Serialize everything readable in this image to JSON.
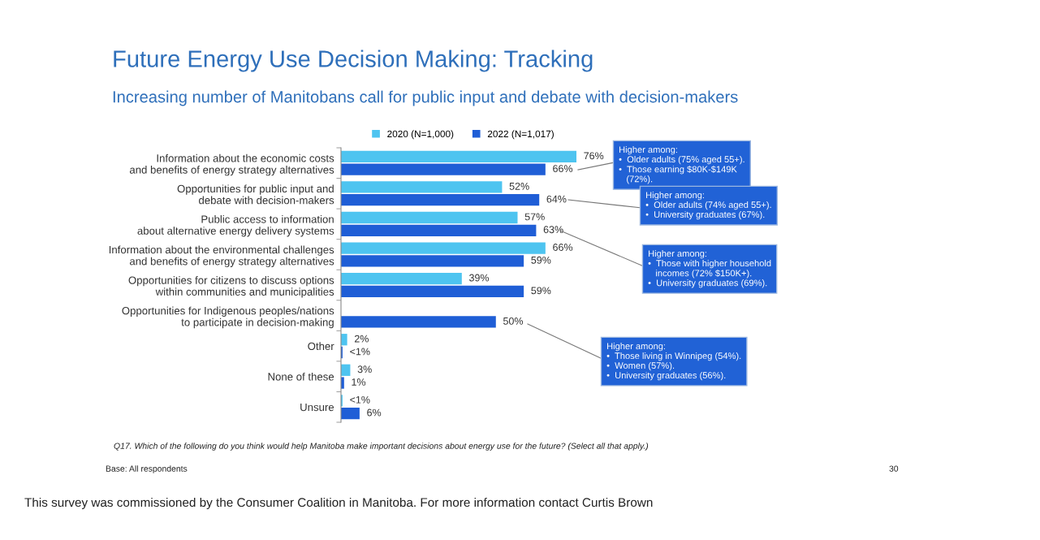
{
  "chart_data": {
    "type": "bar",
    "orientation": "horizontal",
    "title": "Future Energy Use Decision Making: Tracking",
    "subtitle": "Increasing number of Manitobans call for public input and debate with decision-makers",
    "categories": [
      "Information about the economic costs\nand benefits of energy strategy alternatives",
      "Opportunities for public input and\ndebate with decision-makers",
      "Public access to information\nabout alternative energy delivery systems",
      "Information about the environmental challenges\nand benefits of energy strategy alternatives",
      "Opportunities for citizens to discuss options\nwithin communities and municipalities",
      "Opportunities for Indigenous peoples/nations\nto participate in decision-making",
      "Other",
      "None of these",
      "Unsure"
    ],
    "series": [
      {
        "name": "2020 (N=1,000)",
        "color": "#4ec4f0",
        "values": [
          76,
          52,
          57,
          66,
          39,
          null,
          2,
          3,
          0.5
        ],
        "value_labels": [
          "76%",
          "52%",
          "57%",
          "66%",
          "39%",
          null,
          "2%",
          "3%",
          "<1%"
        ]
      },
      {
        "name": "2022 (N=1,017)",
        "color": "#1f5ed6",
        "values": [
          66,
          64,
          63,
          59,
          59,
          50,
          0.5,
          1,
          6
        ],
        "value_labels": [
          "66%",
          "64%",
          "63%",
          "59%",
          "59%",
          "50%",
          "<1%",
          "1%",
          "6%"
        ]
      }
    ],
    "tick_labels": "y",
    "legend": "top",
    "annotations": [
      "Higher among:\n•  Older adults (75% aged 55+).\n•  Those earning $80K-$149K\n   (72%).",
      "Higher among:\n•  Older adults (74% aged 55+).\n•  University graduates (67%).",
      "Higher among:\n•  Those with higher household\n   incomes (72% $150K+).\n•  University graduates (69%).",
      "Higher among:\n•  Those living in Winnipeg (54%).\n•  Women (57%).\n•  University graduates (56%).",
      "Q17. Which of the following do you think would help Manitoba make important decisions about energy use for the future? (Select all that apply.)",
      "Base: All respondents",
      "30",
      "This survey was commissioned by the Consumer Coalition in Manitoba. For more information contact Curtis Brown"
    ]
  }
}
